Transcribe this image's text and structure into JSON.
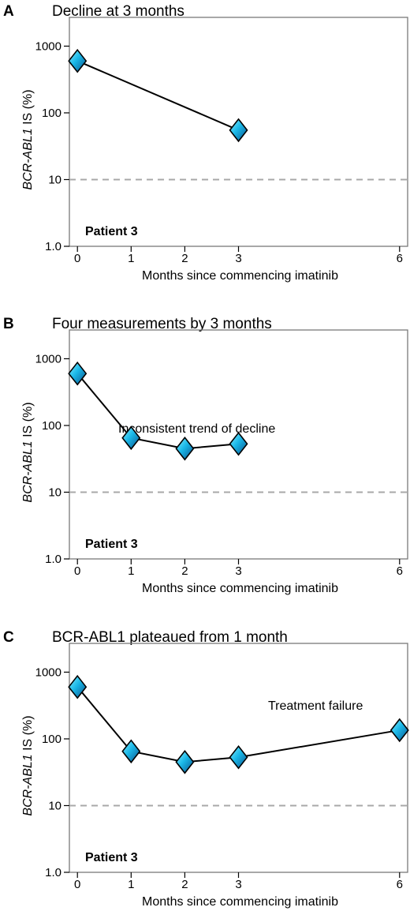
{
  "chart_data": [
    {
      "type": "line",
      "panel": "A",
      "title": "Decline at 3 months",
      "xlabel": "Months since commencing imatinib",
      "ylabel_italic": "BCR-ABL1",
      "ylabel_rest": " IS (%)",
      "x_ticks": [
        0,
        1,
        2,
        3,
        6
      ],
      "y_ticks": [
        1.0,
        10,
        100,
        1000
      ],
      "y_tick_labels": [
        "1.0",
        "10",
        "100",
        "1000"
      ],
      "y_scale": "log",
      "xlim": [
        -0.15,
        6.15
      ],
      "ylim": [
        1,
        2000
      ],
      "reference_line": 10,
      "patient_label": "Patient 3",
      "annotation": "",
      "series": [
        {
          "x": [
            0,
            3
          ],
          "y": [
            600,
            55
          ],
          "color": "#1ab8e8"
        }
      ]
    },
    {
      "type": "line",
      "panel": "B",
      "title": "Four measurements by 3 months",
      "xlabel": "Months since commencing imatinib",
      "ylabel_italic": "BCR-ABL1",
      "ylabel_rest": " IS (%)",
      "x_ticks": [
        0,
        1,
        2,
        3,
        6
      ],
      "y_ticks": [
        1.0,
        10,
        100,
        1000
      ],
      "y_tick_labels": [
        "1.0",
        "10",
        "100",
        "1000"
      ],
      "y_scale": "log",
      "xlim": [
        -0.15,
        6.15
      ],
      "ylim": [
        1,
        2000
      ],
      "reference_line": 10,
      "patient_label": "Patient 3",
      "annotation": "Inconsistent trend of decline",
      "series": [
        {
          "x": [
            0,
            1,
            2,
            3
          ],
          "y": [
            600,
            65,
            45,
            53
          ],
          "color": "#1ab8e8"
        }
      ]
    },
    {
      "type": "line",
      "panel": "C",
      "title": "BCR-ABL1 plateaued from 1 month",
      "xlabel": "Months since commencing imatinib",
      "ylabel_italic": "BCR-ABL1",
      "ylabel_rest": " IS (%)",
      "x_ticks": [
        0,
        1,
        2,
        3,
        6
      ],
      "y_ticks": [
        1.0,
        10,
        100,
        1000
      ],
      "y_tick_labels": [
        "1.0",
        "10",
        "100",
        "1000"
      ],
      "y_scale": "log",
      "xlim": [
        -0.15,
        6.15
      ],
      "ylim": [
        1,
        2000
      ],
      "reference_line": 10,
      "patient_label": "Patient 3",
      "annotation": "Treatment failure",
      "series": [
        {
          "x": [
            0,
            1,
            2,
            3,
            6
          ],
          "y": [
            600,
            65,
            45,
            53,
            135
          ],
          "color": "#1ab8e8"
        }
      ]
    }
  ]
}
